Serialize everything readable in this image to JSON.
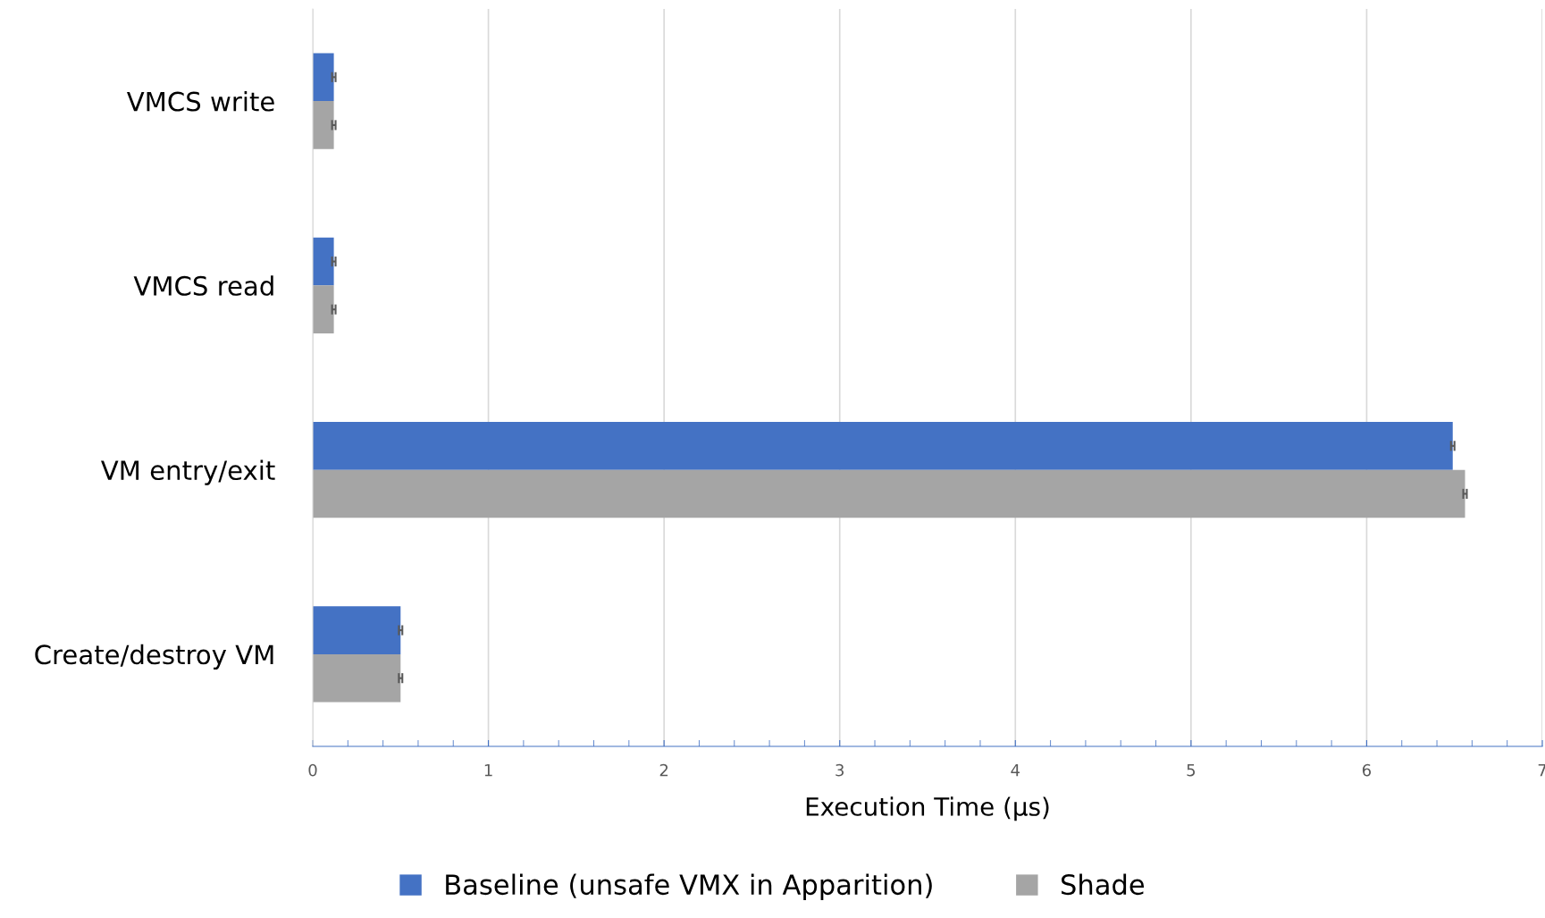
{
  "chart_data": {
    "type": "bar",
    "orientation": "horizontal",
    "xlabel": "Execution Time (µs)",
    "categories": [
      "VMCS write",
      "VMCS read",
      "VM entry/exit",
      "Create/destroy VM"
    ],
    "series": [
      {
        "name": "Baseline (unsafe VMX in Apparition)",
        "color": "#4472c4",
        "values": [
          0.12,
          0.12,
          6.49,
          0.5
        ],
        "errors": [
          0.01,
          0.01,
          0.01,
          0.01
        ]
      },
      {
        "name": "Shade",
        "color": "#a5a5a5",
        "values": [
          0.12,
          0.12,
          6.56,
          0.5
        ],
        "errors": [
          0.01,
          0.01,
          0.01,
          0.01
        ]
      }
    ],
    "xlim": [
      0,
      7
    ],
    "xticks": [
      0,
      1,
      2,
      3,
      4,
      5,
      6,
      7
    ],
    "grid": "x",
    "legend": "bottom"
  }
}
